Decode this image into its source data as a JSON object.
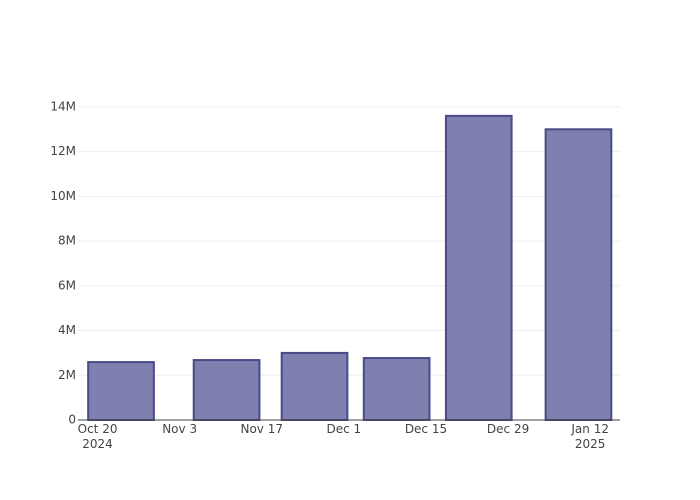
{
  "chart_data": {
    "type": "bar",
    "x": [
      "2024-10-24",
      "2024-11-11",
      "2024-11-26",
      "2024-12-10",
      "2024-12-24",
      "2025-01-10"
    ],
    "values": [
      2590000,
      2680000,
      3000000,
      2770000,
      13600000,
      13000000
    ],
    "color": "#7f7fb0",
    "line_color": "#4a4a88",
    "xlim": [
      "2024-10-16T16:00",
      "2025-01-17T02:00"
    ],
    "xticks": [
      {
        "value": "2024-10-20",
        "label": "Oct 20\n2024"
      },
      {
        "value": "2024-11-03",
        "label": "Nov 3"
      },
      {
        "value": "2024-11-17",
        "label": "Nov 17"
      },
      {
        "value": "2024-12-01",
        "label": "Dec 1"
      },
      {
        "value": "2024-12-15",
        "label": "Dec 15"
      },
      {
        "value": "2024-12-29",
        "label": "Dec 29"
      },
      {
        "value": "2025-01-12",
        "label": "Jan 12\n2025"
      }
    ],
    "ylim": [
      0,
      14310000
    ],
    "yticks": [
      0,
      {
        "value": 2000000,
        "label": "2M"
      },
      {
        "value": 4000000,
        "label": "4M"
      },
      {
        "value": 6000000,
        "label": "6M"
      },
      {
        "value": 8000000,
        "label": "8M"
      },
      {
        "value": 10000000,
        "label": "10M"
      },
      {
        "value": 12000000,
        "label": "12M"
      },
      {
        "value": 14000000,
        "label": "14M"
      }
    ],
    "grid": true
  }
}
